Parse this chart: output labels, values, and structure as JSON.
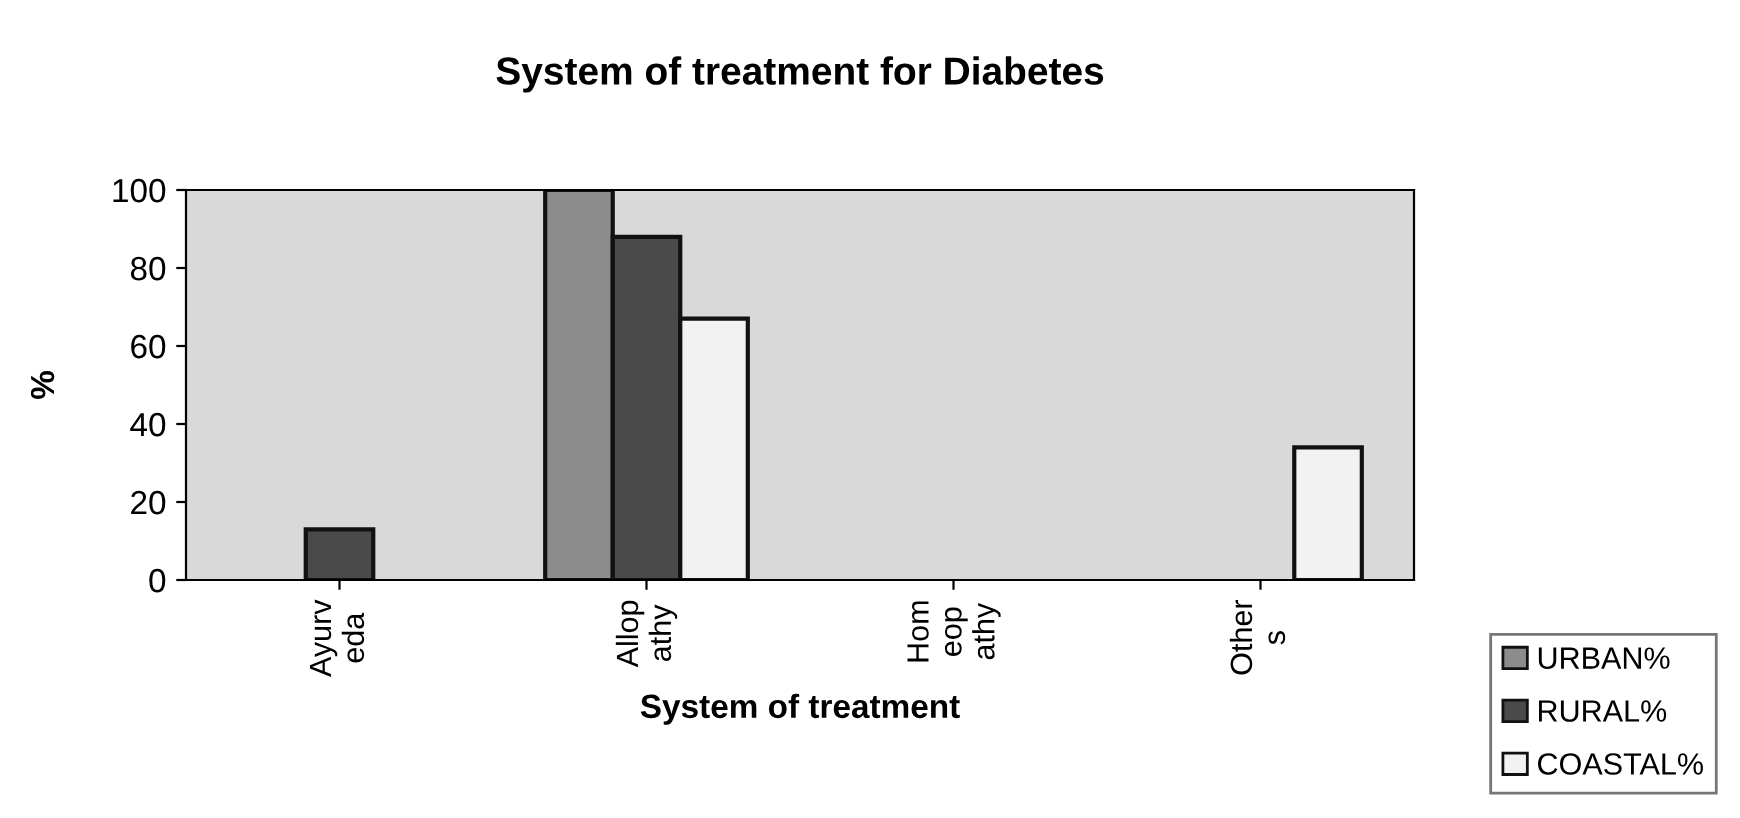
{
  "chart_data": {
    "type": "bar",
    "title": "System of treatment for Diabetes",
    "xlabel": "System of treatment",
    "ylabel": "%",
    "categories": [
      "Ayurv\neda",
      "Allop\nathy",
      "Hom\neop\nathy",
      "Other\ns"
    ],
    "series": [
      {
        "name": "URBAN%",
        "color": "#8c8c8c",
        "values": [
          null,
          100,
          null,
          null
        ]
      },
      {
        "name": "RURAL%",
        "color": "#4a4a4a",
        "values": [
          13,
          88,
          null,
          null
        ]
      },
      {
        "name": "COASTAL%",
        "color": "#f2f2f2",
        "values": [
          null,
          67,
          null,
          34
        ]
      }
    ],
    "ylim": [
      0,
      100
    ],
    "yticks": [
      0,
      20,
      40,
      60,
      80,
      100
    ],
    "grid": false,
    "legend": "bottom right"
  }
}
